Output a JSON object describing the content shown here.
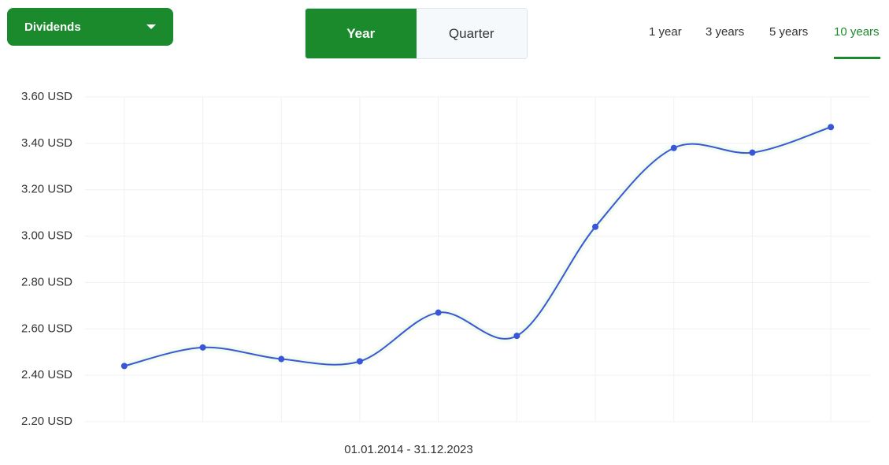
{
  "controls": {
    "dropdown": "Dividends",
    "toggle": [
      "Year",
      "Quarter"
    ],
    "periods": [
      "1 year",
      "3 years",
      "5 years",
      "10 years"
    ]
  },
  "chart_data": {
    "type": "line",
    "categories": [
      null,
      null,
      null,
      null,
      null,
      null,
      null,
      null,
      null,
      null
    ],
    "series": [
      {
        "color": "#3a56d8",
        "values": [
          2.44,
          2.52,
          2.47,
          2.46,
          2.67,
          2.57,
          3.04,
          3.38,
          3.36,
          3.47
        ]
      }
    ],
    "ylim": [
      2.2,
      3.6
    ],
    "yticks": [
      {
        "value": 2.2,
        "label": "2.20 USD"
      },
      {
        "value": 2.4,
        "label": "2.40 USD"
      },
      {
        "value": 2.6,
        "label": "2.60 USD"
      },
      {
        "value": 2.8,
        "label": "2.80 USD"
      },
      {
        "value": 3.0,
        "label": "3.00 USD"
      },
      {
        "value": 3.2,
        "label": "3.20 USD"
      },
      {
        "value": 3.4,
        "label": "3.40 USD"
      },
      {
        "value": 3.6,
        "label": "3.60 USD"
      }
    ],
    "grid": true,
    "xlabel": "01.01.2014 - 31.12.2023"
  }
}
